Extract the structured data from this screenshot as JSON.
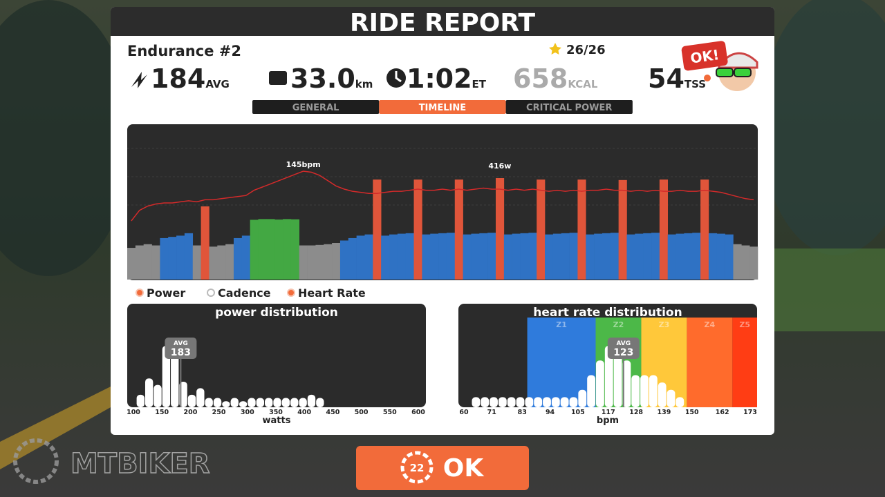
{
  "header": {
    "title": "RIDE REPORT"
  },
  "workout": {
    "name": "Endurance #2",
    "stars": "26/26",
    "badge": "OK!"
  },
  "stats": [
    {
      "value": "184",
      "unit": "AVG"
    },
    {
      "value": "33.0",
      "unit": "km"
    },
    {
      "value": "1:02",
      "unit": "ET"
    },
    {
      "value": "658",
      "unit": "KCAL"
    },
    {
      "value": "54",
      "unit": "TSS"
    }
  ],
  "tabs": [
    "GENERAL",
    "TIMELINE",
    "CRITICAL POWER"
  ],
  "selected_tab": 1,
  "timeline": {
    "power_label": "416w",
    "hr_label": "145bpm",
    "zone_colors": [
      {
        "min": 0,
        "color": "#8c8c8c"
      },
      {
        "min": 155,
        "color": "#2f72c4"
      },
      {
        "min": 230,
        "color": "#43a843"
      },
      {
        "min": 280,
        "color": "#e0553a"
      }
    ],
    "hr_color": "#d42a2a",
    "power": [
      130,
      140,
      145,
      140,
      170,
      175,
      180,
      190,
      140,
      300,
      135,
      140,
      145,
      170,
      180,
      245,
      248,
      248,
      246,
      248,
      247,
      140,
      140,
      142,
      145,
      150,
      160,
      170,
      180,
      185,
      410,
      180,
      185,
      188,
      190,
      410,
      185,
      188,
      190,
      192,
      410,
      185,
      188,
      190,
      192,
      416,
      185,
      188,
      190,
      192,
      410,
      185,
      188,
      190,
      192,
      410,
      185,
      188,
      190,
      192,
      408,
      185,
      188,
      190,
      192,
      410,
      185,
      188,
      190,
      192,
      410,
      190,
      188,
      185,
      145,
      140,
      135
    ],
    "heart_rate": [
      98,
      108,
      112,
      114,
      115,
      115,
      116,
      117,
      116,
      118,
      118,
      119,
      120,
      121,
      122,
      127,
      130,
      133,
      136,
      139,
      142,
      145,
      144,
      141,
      136,
      131,
      128,
      126,
      125,
      124,
      124,
      125,
      126,
      126,
      127,
      128,
      127,
      127,
      128,
      127,
      128,
      127,
      128,
      129,
      128,
      128,
      127,
      128,
      127,
      128,
      127,
      126,
      127,
      126,
      127,
      126,
      127,
      127,
      128,
      127,
      127,
      126,
      127,
      126,
      127,
      126,
      126,
      127,
      126,
      126,
      127,
      126,
      125,
      123,
      121,
      119,
      118
    ]
  },
  "legend": [
    {
      "label": "Power",
      "filled": true
    },
    {
      "label": "Cadence",
      "filled": false
    },
    {
      "label": "Heart Rate",
      "filled": true
    }
  ],
  "power_distribution": {
    "title": "power distribution",
    "x_label": "watts",
    "xlim": [
      100,
      600
    ],
    "xticks": [
      100,
      150,
      200,
      250,
      300,
      350,
      400,
      450,
      500,
      550,
      600
    ],
    "bins": [
      105,
      120,
      135,
      150,
      165,
      180,
      195,
      210,
      225,
      240,
      255,
      270,
      285,
      300,
      315,
      330,
      345,
      360,
      375,
      390,
      405,
      420,
      435
    ],
    "counts": [
      3,
      8,
      6,
      18,
      18,
      7,
      3,
      5,
      2,
      2,
      1,
      2,
      1,
      2,
      2,
      2,
      2,
      2,
      2,
      2,
      3,
      2
    ],
    "avg_label": "AVG",
    "avg": 183
  },
  "hr_distribution": {
    "title": "heart rate distribution",
    "x_label": "bpm",
    "xlim": [
      60,
      173
    ],
    "xticks": [
      60,
      71,
      83,
      94,
      105,
      117,
      128,
      139,
      150,
      162,
      173
    ],
    "zones": [
      {
        "name": "Z1",
        "from": 85,
        "color": "#2f7bdc"
      },
      {
        "name": "Z2",
        "from": 112,
        "color": "#4cb848"
      },
      {
        "name": "Z3",
        "from": 130,
        "color": "#ffc83a"
      },
      {
        "name": "Z4",
        "from": 148,
        "color": "#ff6b2c"
      },
      {
        "name": "Z5",
        "from": 166,
        "color": "#ff3d14"
      }
    ],
    "bins": [
      63,
      66.5,
      70,
      73.5,
      77,
      80.5,
      84,
      87.5,
      91,
      94.5,
      98,
      101.5,
      105,
      108.5,
      112,
      115.5,
      119,
      122.5,
      126,
      129.5,
      133,
      136.5,
      140,
      143.5,
      147
    ],
    "counts": [
      1,
      1,
      1,
      1,
      1,
      1,
      1,
      1,
      1,
      1,
      1,
      1,
      2,
      4,
      6,
      8,
      8,
      6,
      4,
      4,
      4,
      3,
      2,
      1
    ],
    "avg_label": "AVG",
    "avg": 123
  },
  "button": {
    "countdown": "22",
    "label": "OK"
  },
  "watermark": "MTBIKER"
}
